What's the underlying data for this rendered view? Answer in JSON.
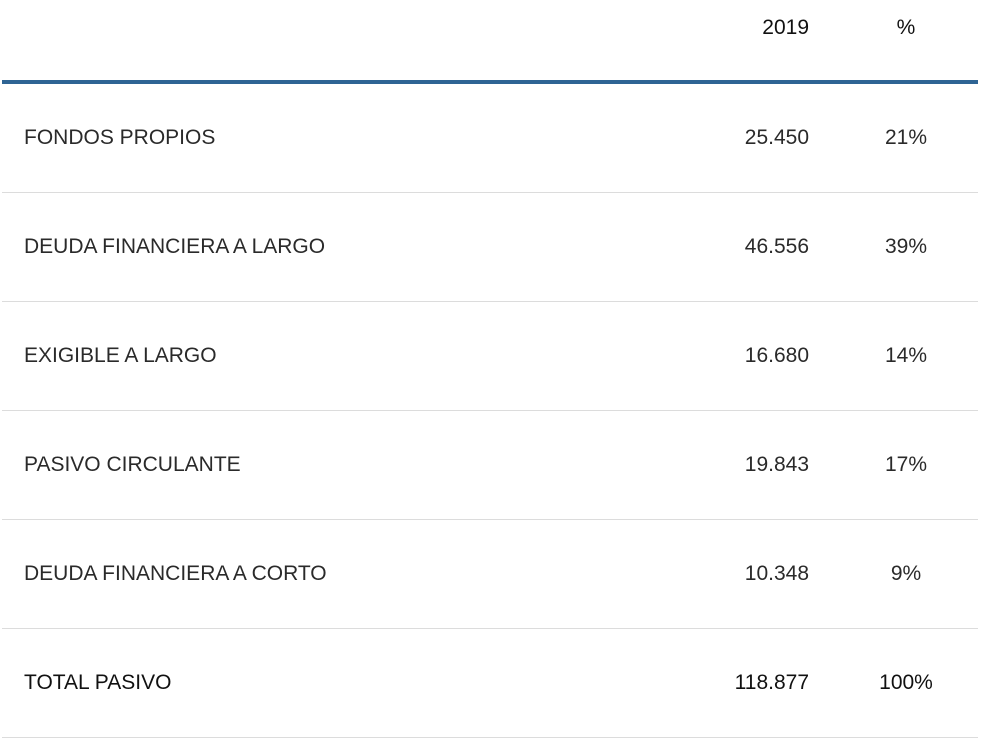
{
  "table": {
    "header": {
      "year": "2019",
      "percent": "%"
    },
    "rows": [
      {
        "label": "FONDOS PROPIOS",
        "value": "25.450",
        "percent": "21%"
      },
      {
        "label": "DEUDA FINANCIERA A LARGO",
        "value": "46.556",
        "percent": "39%"
      },
      {
        "label": "EXIGIBLE A LARGO",
        "value": "16.680",
        "percent": "14%"
      },
      {
        "label": "PASIVO CIRCULANTE",
        "value": "19.843",
        "percent": "17%"
      },
      {
        "label": "DEUDA FINANCIERA A CORTO",
        "value": "10.348",
        "percent": "9%"
      }
    ],
    "total": {
      "label": "TOTAL PASIVO",
      "value": "118.877",
      "percent": "100%"
    }
  },
  "colors": {
    "header_rule": "#2e6494",
    "row_divider": "#dcdcdc"
  }
}
